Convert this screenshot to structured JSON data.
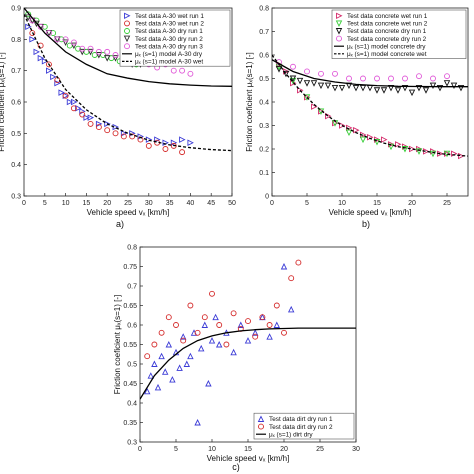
{
  "chart_data": [
    {
      "panel_label": "a)",
      "type": "scatter",
      "xlabel": "Vehicle speed vₓ [km/h]",
      "ylabel": "Friction coeficient μₓ(s=1) [-]",
      "xlim": [
        0,
        50
      ],
      "ylim": [
        0.3,
        0.9
      ],
      "xticks": [
        "0",
        "5",
        "10",
        "15",
        "20",
        "25",
        "30",
        "35",
        "40",
        "45",
        "50"
      ],
      "yticks": [
        "0.3",
        "0.4",
        "0.5",
        "0.6",
        "0.7",
        "0.8",
        "0.9"
      ],
      "legend_position": "top-right",
      "series": [
        {
          "name": "Test data A-30 wet run 1",
          "kind": "scatter",
          "marker": "triangle-right",
          "color": "#3b3bd6",
          "x": [
            1,
            2,
            3,
            4,
            5,
            6,
            7,
            8,
            9,
            10,
            11,
            12,
            13,
            14,
            15,
            16,
            18,
            20,
            22,
            24,
            26,
            28,
            30,
            32,
            34,
            36,
            38,
            40
          ],
          "y": [
            0.84,
            0.8,
            0.76,
            0.74,
            0.73,
            0.7,
            0.68,
            0.66,
            0.63,
            0.62,
            0.6,
            0.6,
            0.58,
            0.57,
            0.55,
            0.55,
            0.53,
            0.53,
            0.52,
            0.5,
            0.5,
            0.49,
            0.48,
            0.48,
            0.47,
            0.47,
            0.48,
            0.47
          ]
        },
        {
          "name": "Test data A-30 wet run 2",
          "kind": "scatter",
          "marker": "circle",
          "color": "#d42a2a",
          "x": [
            2,
            4,
            6,
            8,
            10,
            12,
            14,
            16,
            18,
            20,
            22,
            24,
            26,
            28,
            30,
            32,
            34,
            36,
            38
          ],
          "y": [
            0.82,
            0.78,
            0.72,
            0.67,
            0.62,
            0.58,
            0.56,
            0.53,
            0.52,
            0.51,
            0.5,
            0.49,
            0.49,
            0.48,
            0.46,
            0.47,
            0.45,
            0.46,
            0.44
          ]
        },
        {
          "name": "Test data A-30 dry run 1",
          "kind": "scatter",
          "marker": "circle",
          "color": "#33cc33",
          "x": [
            1,
            3,
            5,
            7,
            9,
            11,
            13,
            15,
            17,
            19,
            21,
            23,
            25,
            27
          ],
          "y": [
            0.88,
            0.86,
            0.84,
            0.82,
            0.8,
            0.78,
            0.77,
            0.76,
            0.75,
            0.75,
            0.74,
            0.73,
            0.73,
            0.72
          ]
        },
        {
          "name": "Test data A-30 dry run 2",
          "kind": "scatter",
          "marker": "triangle-down",
          "color": "#2e2e2e",
          "x": [
            1,
            2,
            3,
            4,
            6,
            8,
            10,
            12,
            14,
            16,
            18,
            20,
            22,
            24,
            26,
            28
          ],
          "y": [
            0.87,
            0.86,
            0.85,
            0.84,
            0.82,
            0.8,
            0.79,
            0.78,
            0.76,
            0.76,
            0.75,
            0.74,
            0.74,
            0.73,
            0.72,
            0.72
          ]
        },
        {
          "name": "Test data A-30 dry run 3",
          "kind": "scatter",
          "marker": "circle",
          "color": "#e05ad8",
          "x": [
            2,
            4,
            6,
            8,
            10,
            12,
            14,
            16,
            18,
            20,
            22,
            24,
            26,
            28,
            30,
            32,
            34,
            36,
            38,
            40
          ],
          "y": [
            0.86,
            0.84,
            0.82,
            0.8,
            0.8,
            0.79,
            0.77,
            0.77,
            0.76,
            0.76,
            0.75,
            0.74,
            0.73,
            0.73,
            0.72,
            0.71,
            0.72,
            0.7,
            0.7,
            0.69
          ]
        },
        {
          "name": "μₓ (s=1) model A-30 dry",
          "kind": "line",
          "style": "solid",
          "color": "#000000",
          "x": [
            0,
            5,
            10,
            15,
            20,
            25,
            30,
            35,
            40,
            45,
            50
          ],
          "y": [
            0.9,
            0.82,
            0.76,
            0.72,
            0.69,
            0.676,
            0.665,
            0.658,
            0.654,
            0.651,
            0.65
          ]
        },
        {
          "name": "μₓ (s=1) model A-30 wet",
          "kind": "line",
          "style": "dashed",
          "color": "#000000",
          "x": [
            0,
            5,
            10,
            15,
            20,
            25,
            30,
            35,
            40,
            45,
            50
          ],
          "y": [
            0.88,
            0.74,
            0.64,
            0.575,
            0.53,
            0.5,
            0.478,
            0.463,
            0.454,
            0.448,
            0.445
          ]
        }
      ]
    },
    {
      "panel_label": "b)",
      "type": "scatter",
      "xlabel": "Vehicle speed vₓ [km/h]",
      "ylabel": "Friction coeficient μₓ(s=1) [-]",
      "xlim": [
        0,
        28
      ],
      "ylim": [
        0,
        0.8
      ],
      "xticks": [
        "0",
        "5",
        "10",
        "15",
        "20",
        "25"
      ],
      "yticks": [
        "0",
        "0.1",
        "0.2",
        "0.3",
        "0.4",
        "0.5",
        "0.6",
        "0.7",
        "0.8"
      ],
      "legend_position": "top-right",
      "series": [
        {
          "name": "Test data concrete wet run 1",
          "kind": "scatter",
          "marker": "triangle-right",
          "color": "#d42a6a",
          "x": [
            1,
            2,
            3,
            4,
            5,
            6,
            7,
            8,
            9,
            10,
            11,
            12,
            13,
            14,
            15,
            16,
            17,
            18,
            19,
            20,
            21,
            22,
            23,
            24,
            25,
            26,
            27
          ],
          "y": [
            0.56,
            0.53,
            0.48,
            0.45,
            0.42,
            0.38,
            0.36,
            0.34,
            0.31,
            0.3,
            0.29,
            0.28,
            0.26,
            0.25,
            0.24,
            0.24,
            0.22,
            0.22,
            0.21,
            0.2,
            0.2,
            0.19,
            0.19,
            0.18,
            0.18,
            0.18,
            0.17
          ]
        },
        {
          "name": "Test data concrete wet run 2",
          "kind": "scatter",
          "marker": "triangle-down",
          "color": "#33cc33",
          "x": [
            1,
            3,
            5,
            7,
            9,
            11,
            13,
            15,
            17,
            19,
            21,
            23,
            25
          ],
          "y": [
            0.55,
            0.49,
            0.42,
            0.36,
            0.31,
            0.27,
            0.24,
            0.23,
            0.21,
            0.2,
            0.19,
            0.18,
            0.18
          ]
        },
        {
          "name": "Test data concrete dry run 1",
          "kind": "scatter",
          "marker": "triangle-down",
          "color": "#111111",
          "x": [
            1,
            2,
            3,
            4,
            5,
            6,
            7,
            8,
            9,
            10,
            11,
            12,
            13,
            14,
            15,
            16,
            17,
            18,
            19,
            20,
            21,
            22,
            23,
            24,
            25,
            26,
            27
          ],
          "y": [
            0.54,
            0.52,
            0.5,
            0.49,
            0.48,
            0.48,
            0.47,
            0.47,
            0.46,
            0.46,
            0.47,
            0.46,
            0.46,
            0.46,
            0.45,
            0.45,
            0.46,
            0.45,
            0.46,
            0.44,
            0.46,
            0.45,
            0.47,
            0.46,
            0.48,
            0.47,
            0.46
          ]
        },
        {
          "name": "Test data concrete dry run 2",
          "kind": "scatter",
          "marker": "circle",
          "color": "#e05ad8",
          "x": [
            1,
            3,
            5,
            7,
            9,
            11,
            13,
            15,
            17,
            19,
            21,
            23,
            25
          ],
          "y": [
            0.57,
            0.55,
            0.53,
            0.52,
            0.52,
            0.5,
            0.5,
            0.5,
            0.5,
            0.5,
            0.51,
            0.5,
            0.51
          ]
        },
        {
          "name": "μₓ (s=1) model concrete dry",
          "kind": "line",
          "style": "solid",
          "color": "#000000",
          "x": [
            0,
            3,
            6,
            9,
            12,
            15,
            18,
            21,
            24,
            27,
            28
          ],
          "y": [
            0.58,
            0.53,
            0.5,
            0.485,
            0.475,
            0.47,
            0.467,
            0.466,
            0.465,
            0.465,
            0.465
          ]
        },
        {
          "name": "μₓ (s=1) model concrete wet",
          "kind": "line",
          "style": "dashed",
          "color": "#000000",
          "x": [
            0,
            2,
            4,
            6,
            8,
            10,
            12,
            14,
            16,
            18,
            20,
            22,
            24,
            26,
            28
          ],
          "y": [
            0.6,
            0.52,
            0.45,
            0.39,
            0.34,
            0.3,
            0.27,
            0.245,
            0.225,
            0.21,
            0.2,
            0.19,
            0.18,
            0.175,
            0.17
          ]
        }
      ]
    },
    {
      "panel_label": "c)",
      "type": "scatter",
      "xlabel": "Vehicle speed vₓ [km/h]",
      "ylabel": "Friction coeficient μₓ(s=1) [-]",
      "xlim": [
        0,
        30
      ],
      "ylim": [
        0.3,
        0.8
      ],
      "xticks": [
        "0",
        "5",
        "10",
        "15",
        "20",
        "25",
        "30"
      ],
      "yticks": [
        "0.3",
        "0.35",
        "0.4",
        "0.45",
        "0.5",
        "0.55",
        "0.6",
        "0.65",
        "0.7",
        "0.75",
        "0.8"
      ],
      "legend_position": "bottom-right",
      "series": [
        {
          "name": "Test data dirt dry run 1",
          "kind": "scatter",
          "marker": "triangle-up",
          "color": "#3b3bd6",
          "x": [
            1,
            1.5,
            2,
            2.5,
            3,
            3.5,
            4,
            4.5,
            5,
            5.5,
            6,
            6.5,
            7,
            7.5,
            8,
            8.5,
            9,
            9.5,
            10,
            10.5,
            11,
            12,
            13,
            14,
            15,
            16,
            17,
            18,
            19,
            20,
            21
          ],
          "y": [
            0.43,
            0.47,
            0.5,
            0.44,
            0.52,
            0.48,
            0.55,
            0.46,
            0.53,
            0.49,
            0.57,
            0.5,
            0.52,
            0.58,
            0.35,
            0.54,
            0.6,
            0.45,
            0.56,
            0.62,
            0.55,
            0.58,
            0.53,
            0.6,
            0.56,
            0.58,
            0.62,
            0.57,
            0.6,
            0.75,
            0.64
          ]
        },
        {
          "name": "Test data dirt dry run 2",
          "kind": "scatter",
          "marker": "circle",
          "color": "#d42a2a",
          "x": [
            1,
            2,
            3,
            4,
            5,
            6,
            7,
            8,
            9,
            10,
            11,
            12,
            13,
            14,
            15,
            16,
            17,
            18,
            19,
            20,
            21,
            22
          ],
          "y": [
            0.52,
            0.55,
            0.58,
            0.62,
            0.6,
            0.56,
            0.65,
            0.58,
            0.62,
            0.68,
            0.6,
            0.55,
            0.63,
            0.59,
            0.61,
            0.57,
            0.62,
            0.6,
            0.65,
            0.58,
            0.72,
            0.76
          ]
        },
        {
          "name": "μₓ (s=1) dirt dry",
          "kind": "line",
          "style": "solid",
          "color": "#000000",
          "x": [
            0,
            2,
            4,
            6,
            8,
            10,
            12,
            14,
            16,
            18,
            20,
            22,
            24,
            26,
            28,
            30
          ],
          "y": [
            0.41,
            0.47,
            0.51,
            0.54,
            0.56,
            0.572,
            0.58,
            0.585,
            0.588,
            0.59,
            0.591,
            0.592,
            0.592,
            0.592,
            0.592,
            0.592
          ]
        }
      ]
    }
  ]
}
